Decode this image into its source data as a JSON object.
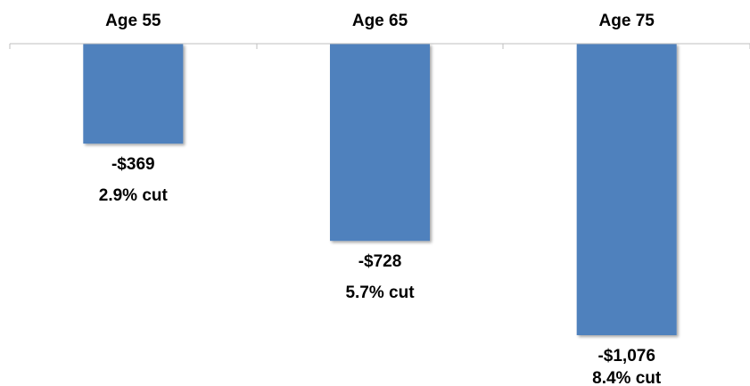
{
  "chart_data": {
    "type": "bar",
    "categories": [
      "Age 55",
      "Age 65",
      "Age 75"
    ],
    "values": [
      -369,
      -728,
      -1076
    ],
    "value_labels": [
      "-$369",
      "-$728",
      "-$1,076"
    ],
    "percent_labels": [
      "2.9% cut",
      "5.7% cut",
      "8.4% cut"
    ],
    "title": "",
    "xlabel": "",
    "ylabel": "",
    "ylim": [
      -1076,
      0
    ],
    "category_axis_position": "top",
    "grid": false,
    "legend": "none",
    "colors": {
      "bar": "#4f81bd",
      "axis": "#bfbfbf",
      "text": "#000000"
    }
  }
}
